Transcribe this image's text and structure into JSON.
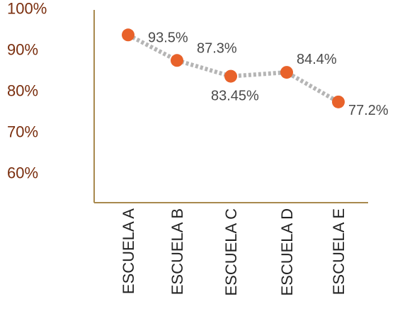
{
  "chart_data": {
    "type": "line",
    "title": "",
    "xlabel": "",
    "ylabel": "",
    "categories": [
      "ESCUELA A",
      "ESCUELA B",
      "ESCUELA C",
      "ESCUELA D",
      "ESCUELA E"
    ],
    "series": [
      {
        "values": [
          93.5,
          87.3,
          83.45,
          84.4,
          77.2
        ],
        "labels": [
          "93.5%",
          "87.3%",
          "83.45%",
          "84.4%",
          "77.2%"
        ]
      }
    ],
    "y_ticks": [
      "100%",
      "90%",
      "80%",
      "70%",
      "60%"
    ],
    "y_tick_values": [
      100,
      90,
      80,
      70,
      60
    ],
    "ylim": [
      52,
      102
    ],
    "grid": false,
    "legend": "none",
    "colors": {
      "marker": "#e8622a",
      "line": "#b5b5b5",
      "axis": "#a8894e",
      "tick_text": "#7a2e0e"
    }
  }
}
